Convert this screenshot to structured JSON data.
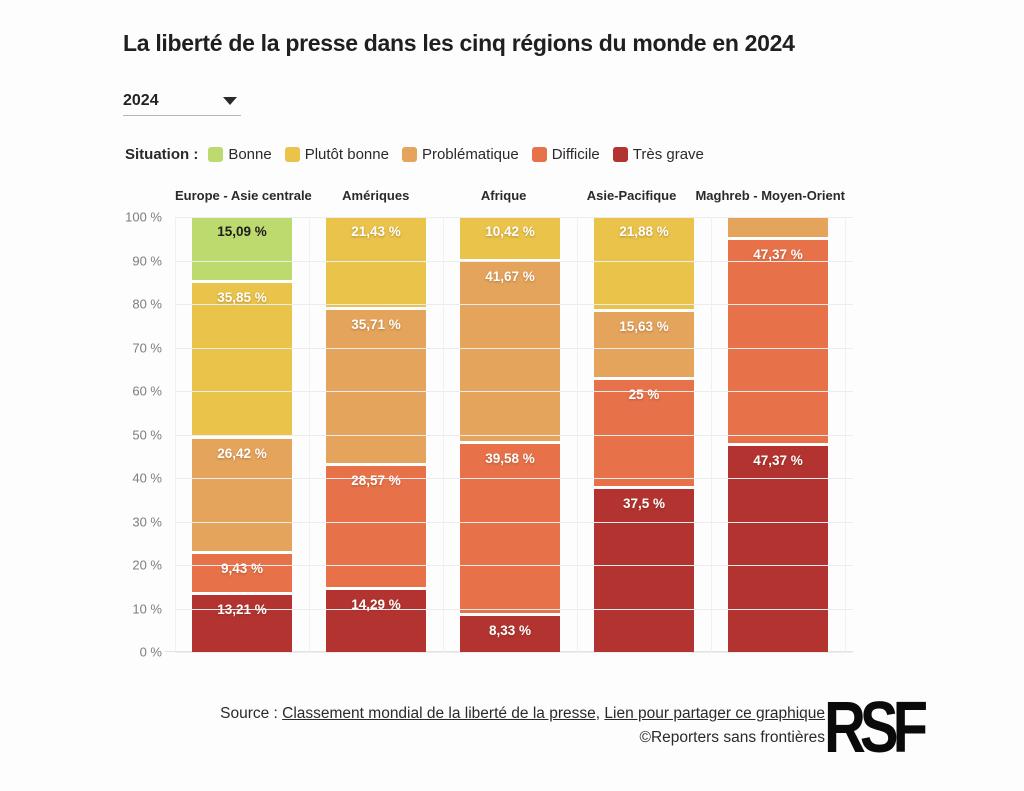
{
  "page": {
    "title": "La liberté de la presse dans les cinq régions du monde en 2024",
    "year_selector": {
      "value": "2024"
    },
    "legend": {
      "caption": "Situation :",
      "items": [
        {
          "label": "Bonne",
          "color": "#bdda6e"
        },
        {
          "label": "Plutôt bonne",
          "color": "#eac44a"
        },
        {
          "label": "Problématique",
          "color": "#e5a45c"
        },
        {
          "label": "Difficile",
          "color": "#e7724a"
        },
        {
          "label": "Très grave",
          "color": "#b23330"
        }
      ]
    },
    "footer": {
      "source_prefix": "Source : ",
      "link1": "Classement mondial de la liberté de la presse",
      "separator": ", ",
      "link2": "Lien pour partager ce graphique",
      "copyright": "©Reporters sans frontières",
      "logo_text": "RSF"
    }
  },
  "chart_data": {
    "type": "bar",
    "stacked": true,
    "title": "La liberté de la presse dans les cinq régions du monde en 2024",
    "xlabel": "",
    "ylabel": "",
    "unit": "%",
    "ylim": [
      0,
      100
    ],
    "grid": true,
    "legend_position": "top",
    "yticks": [
      "100 %",
      "90 %",
      "80 %",
      "70 %",
      "60 %",
      "50 %",
      "40 %",
      "30 %",
      "20 %",
      "10 %",
      "0 %"
    ],
    "categories": [
      "Europe - Asie centrale",
      "Amériques",
      "Afrique",
      "Asie-Pacifique",
      "Maghreb - Moyen-Orient"
    ],
    "series": [
      {
        "name": "Bonne",
        "color": "#bdda6e",
        "label_color": "dark",
        "values": [
          15.09,
          0,
          0,
          0,
          0
        ],
        "labels": [
          "15,09 %",
          "",
          "",
          "",
          ""
        ]
      },
      {
        "name": "Plutôt bonne",
        "color": "#eac44a",
        "label_color": "light",
        "values": [
          35.85,
          21.43,
          10.42,
          21.88,
          0
        ],
        "labels": [
          "35,85 %",
          "21,43 %",
          "10,42 %",
          "21,88 %",
          ""
        ]
      },
      {
        "name": "Problématique",
        "color": "#e5a45c",
        "label_color": "light",
        "values": [
          26.42,
          35.71,
          41.67,
          15.63,
          5.26
        ],
        "labels": [
          "26,42 %",
          "35,71 %",
          "41,67 %",
          "15,63 %",
          ""
        ]
      },
      {
        "name": "Difficile",
        "color": "#e7724a",
        "label_color": "light",
        "values": [
          9.43,
          28.57,
          39.58,
          25,
          47.37
        ],
        "labels": [
          "9,43 %",
          "28,57 %",
          "39,58 %",
          "25 %",
          "47,37 %"
        ]
      },
      {
        "name": "Très grave",
        "color": "#b23330",
        "label_color": "light",
        "values": [
          13.21,
          14.29,
          8.33,
          37.5,
          47.37
        ],
        "labels": [
          "13,21 %",
          "14,29 %",
          "8,33 %",
          "37,5 %",
          "47,37 %"
        ]
      }
    ]
  }
}
